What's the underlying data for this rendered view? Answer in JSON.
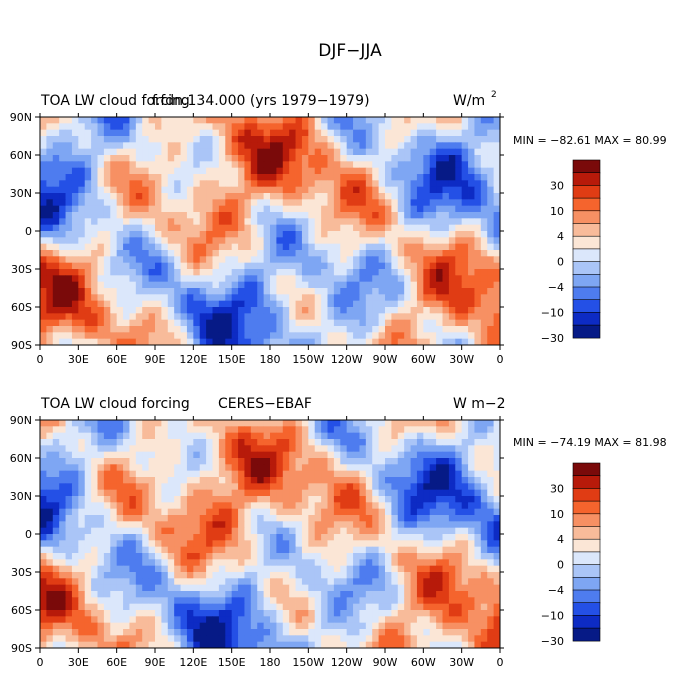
{
  "title": "DJF−JJA",
  "chart_data": [
    {
      "type": "heatmap",
      "title_left": "TOA LW cloud forcing",
      "title_center": "f.fdn.134.000 (yrs 1979−1979)",
      "units": "W/m",
      "units_sup": "2",
      "stats": "MIN = −82.61 MAX =  80.99",
      "x_ticks": [
        "0",
        "30E",
        "60E",
        "90E",
        "120E",
        "150E",
        "180",
        "150W",
        "120W",
        "90W",
        "60W",
        "30W",
        "0"
      ],
      "y_ticks": [
        "90N",
        "60N",
        "30N",
        "0",
        "30S",
        "60S",
        "90S"
      ],
      "colorbar_labels": [
        "30",
        "10",
        "4",
        "0",
        "−4",
        "−10",
        "−30"
      ]
    },
    {
      "type": "heatmap",
      "title_left": "TOA LW cloud forcing",
      "title_center": "CERES−EBAF",
      "units": "W m−2",
      "units_sup": "",
      "stats": "MIN = −74.19 MAX =  81.98",
      "x_ticks": [
        "0",
        "30E",
        "60E",
        "90E",
        "120E",
        "150E",
        "180",
        "150W",
        "120W",
        "90W",
        "60W",
        "30W",
        "0"
      ],
      "y_ticks": [
        "90N",
        "60N",
        "30N",
        "0",
        "30S",
        "60S",
        "90S"
      ],
      "colorbar_labels": [
        "30",
        "10",
        "4",
        "0",
        "−4",
        "−10",
        "−30"
      ]
    }
  ],
  "colors": [
    "#7a0a0a",
    "#b71a0a",
    "#e03c14",
    "#f5642d",
    "#f79063",
    "#f8bb9a",
    "#fbe6d6",
    "#dbe7fb",
    "#aac5f7",
    "#7ea6f3",
    "#4e7cef",
    "#2450e6",
    "#0d2bc4",
    "#061a86"
  ]
}
